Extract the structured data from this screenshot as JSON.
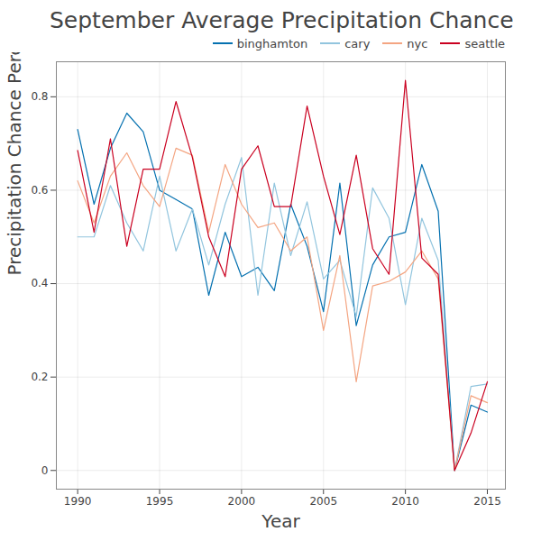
{
  "chart_data": {
    "type": "line",
    "title": "September Average Precipitation Chance",
    "xlabel": "Year",
    "ylabel": "Precipitation Chance Percentage",
    "x": [
      1990,
      1991,
      1992,
      1993,
      1994,
      1995,
      1996,
      1997,
      1998,
      1999,
      2000,
      2001,
      2002,
      2003,
      2004,
      2005,
      2006,
      2007,
      2008,
      2009,
      2010,
      2011,
      2012,
      2013,
      2014,
      2015
    ],
    "series": [
      {
        "name": "binghamton",
        "color": "#0571b0",
        "values": [
          0.73,
          0.57,
          0.69,
          0.765,
          0.725,
          0.6,
          0.58,
          0.56,
          0.375,
          0.51,
          0.415,
          0.435,
          0.385,
          0.57,
          0.48,
          0.34,
          0.615,
          0.31,
          0.44,
          0.5,
          0.51,
          0.655,
          0.555,
          0.0,
          0.14,
          0.125
        ]
      },
      {
        "name": "cary",
        "color": "#92c5de",
        "values": [
          0.5,
          0.5,
          0.61,
          0.53,
          0.47,
          0.63,
          0.47,
          0.56,
          0.44,
          0.57,
          0.67,
          0.375,
          0.615,
          0.46,
          0.575,
          0.41,
          0.45,
          0.33,
          0.605,
          0.54,
          0.355,
          0.54,
          0.45,
          0.0,
          0.18,
          0.185
        ]
      },
      {
        "name": "nyc",
        "color": "#f4a582",
        "values": [
          0.62,
          0.53,
          0.63,
          0.68,
          0.61,
          0.565,
          0.69,
          0.675,
          0.51,
          0.655,
          0.57,
          0.52,
          0.53,
          0.47,
          0.5,
          0.3,
          0.46,
          0.19,
          0.395,
          0.405,
          0.425,
          0.47,
          0.41,
          0.0,
          0.16,
          0.145
        ]
      },
      {
        "name": "seattle",
        "color": "#ca0020",
        "values": [
          0.685,
          0.51,
          0.71,
          0.48,
          0.645,
          0.645,
          0.79,
          0.67,
          0.5,
          0.415,
          0.645,
          0.695,
          0.565,
          0.565,
          0.78,
          0.63,
          0.505,
          0.675,
          0.475,
          0.42,
          0.835,
          0.455,
          0.42,
          0.0,
          0.08,
          0.19
        ]
      }
    ],
    "xlim": [
      1988.7,
      2016.1
    ],
    "ylim": [
      -0.04,
      0.875
    ],
    "xticks": [
      1990,
      1995,
      2000,
      2005,
      2010,
      2015
    ],
    "yticks": [
      0,
      0.2,
      0.4,
      0.6,
      0.8
    ],
    "grid": true,
    "legend": "top-right"
  }
}
